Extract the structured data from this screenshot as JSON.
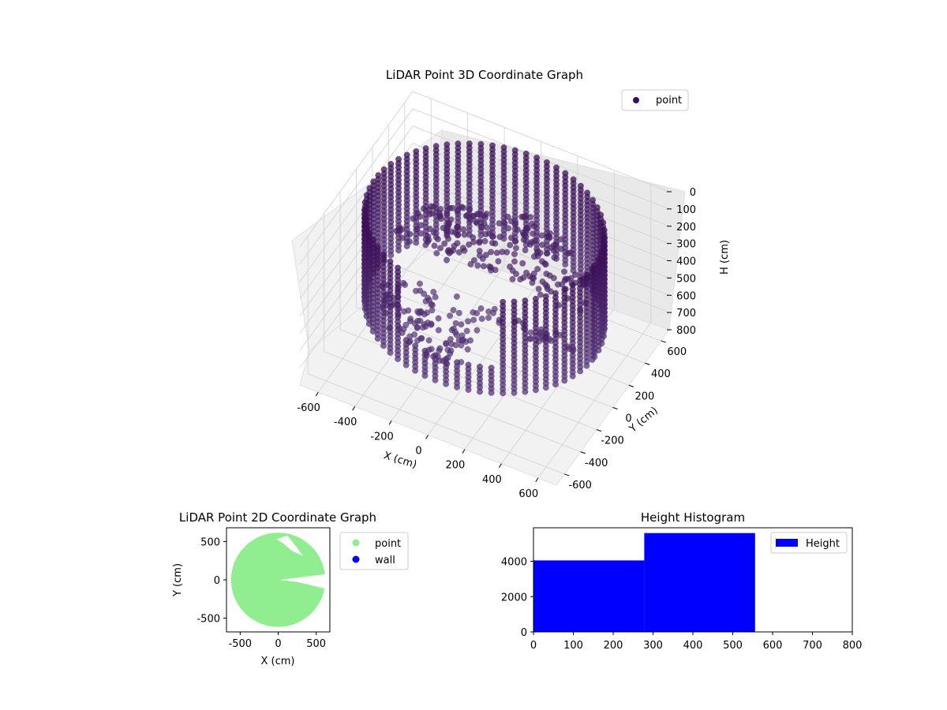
{
  "chart_data": [
    {
      "type": "scatter",
      "subtype": "scatter3d",
      "title": "LiDAR Point 3D Coordinate Graph",
      "xlabel": "X (cm)",
      "ylabel": "Y (cm)",
      "zlabel": "H (cm)",
      "xlim": [
        -700,
        700
      ],
      "ylim": [
        -700,
        700
      ],
      "zlim": [
        800,
        0
      ],
      "x_ticks": [
        "-600",
        "-400",
        "-200",
        "0",
        "200",
        "400",
        "600"
      ],
      "y_ticks": [
        "-600",
        "-400",
        "-200",
        "0",
        "200",
        "400",
        "600"
      ],
      "z_ticks": [
        "0",
        "100",
        "200",
        "300",
        "400",
        "500",
        "600",
        "700",
        "800"
      ],
      "grid": true,
      "legend": {
        "position": "top-right",
        "entries": [
          {
            "label": "point",
            "color": "#3b0f56"
          }
        ]
      },
      "series": [
        {
          "name": "point",
          "color": "#3b0f56",
          "description_data": {
            "wall_radius_cm": 600,
            "wall_height_range_cm": [
              0,
              560
            ],
            "floor_patch_height_cm": [
              280,
              560
            ]
          }
        }
      ]
    },
    {
      "type": "scatter",
      "title": "LiDAR Point 2D Coordinate Graph",
      "xlabel": "X (cm)",
      "ylabel": "Y (cm)",
      "xlim": [
        -680,
        680
      ],
      "ylim": [
        -680,
        680
      ],
      "x_ticks": [
        "-500",
        "0",
        "500"
      ],
      "y_ticks": [
        "500",
        "0",
        "-500"
      ],
      "legend": {
        "position": "right",
        "entries": [
          {
            "label": "point",
            "color": "#90ee90"
          },
          {
            "label": "wall",
            "color": "#0000ff"
          }
        ]
      },
      "series": [
        {
          "name": "point",
          "color": "#90ee90",
          "radius_cm": 620
        },
        {
          "name": "wall",
          "color": "#0000ff"
        }
      ]
    },
    {
      "type": "bar",
      "subtype": "histogram",
      "title": "Height Histogram",
      "xlabel": "",
      "ylabel": "",
      "xlim": [
        0,
        800
      ],
      "ylim": [
        0,
        5900
      ],
      "x_ticks": [
        "0",
        "100",
        "200",
        "300",
        "400",
        "500",
        "600",
        "700",
        "800"
      ],
      "y_ticks": [
        "0",
        "2000",
        "4000"
      ],
      "bins": [
        {
          "from": 0,
          "to": 278,
          "value": 4050
        },
        {
          "from": 278,
          "to": 556,
          "value": 5600
        }
      ],
      "legend": {
        "position": "top-right",
        "entries": [
          {
            "label": "Height",
            "color": "#0000ff"
          }
        ]
      },
      "series": [
        {
          "name": "Height",
          "color": "#0000ff"
        }
      ]
    }
  ]
}
